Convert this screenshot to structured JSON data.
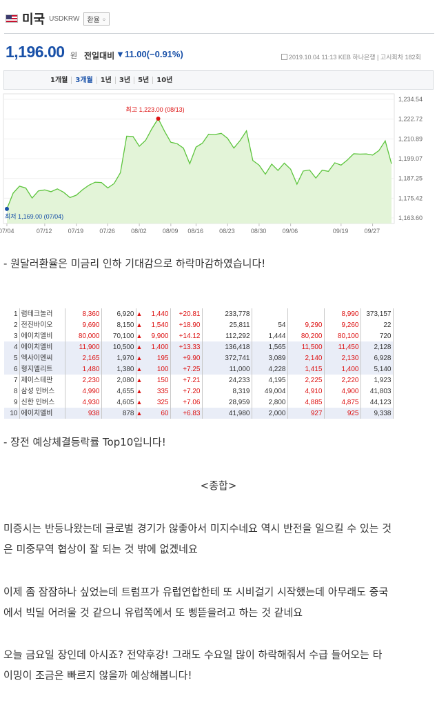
{
  "header": {
    "country": "미국",
    "code": "USDKRW",
    "kind_label": "환율 ◦"
  },
  "quote": {
    "price": "1,196.00",
    "unit": "원",
    "compare_label": "전일대비",
    "change": "▼11.00(−0.91%)",
    "meta": "2019.10.04 11:13  KEB 하나은행  |  고시회차 182회"
  },
  "tabs": [
    {
      "label": "1개월",
      "active": false
    },
    {
      "label": "3개월",
      "active": true
    },
    {
      "label": "1년",
      "active": false
    },
    {
      "label": "3년",
      "active": false
    },
    {
      "label": "5년",
      "active": false
    },
    {
      "label": "10년",
      "active": false
    }
  ],
  "chart_data": {
    "type": "area",
    "ylim": [
      1163.6,
      1234.54
    ],
    "yticks": [
      "1,234.54",
      "1,222.72",
      "1,210.89",
      "1,199.07",
      "1,187.25",
      "1,175.42",
      "1,163.60"
    ],
    "xticks": [
      "07/04",
      "07/12",
      "07/19",
      "07/26",
      "08/02",
      "08/09",
      "08/16",
      "08/23",
      "08/30",
      "09/06",
      "09/19",
      "09/27"
    ],
    "high_label": "최고 1,223.00 (08/13)",
    "low_label": "최저 1,169.00 (07/04)",
    "colors": {
      "line": "#5cc43c",
      "fill": "#e3f4d8",
      "high": "#dd1111",
      "low": "#1850a8"
    },
    "series": [
      {
        "values": [
          1169.0,
          1178.5,
          1182.6,
          1181.5,
          1175.5,
          1179.8,
          1180.4,
          1179.3,
          1181.0,
          1179.0,
          1175.8,
          1177.2,
          1180.5,
          1183.2,
          1185.0,
          1184.8,
          1181.6,
          1184.2,
          1190.7,
          1212.5,
          1212.3,
          1206.5,
          1210.0,
          1217.0,
          1223.0,
          1215.5,
          1208.9,
          1208.0,
          1205.4,
          1196.0,
          1206.0,
          1208.3,
          1213.7,
          1213.5,
          1214.2,
          1211.2,
          1205.4,
          1210.0,
          1215.7,
          1198.0,
          1195.2,
          1189.8,
          1195.8,
          1192.0,
          1196.4,
          1192.8,
          1183.8,
          1191.7,
          1192.3,
          1187.5,
          1192.2,
          1191.5,
          1196.6,
          1195.2,
          1198.3,
          1202.0,
          1201.8,
          1201.9,
          1201.2,
          1203.9,
          1209.7,
          1196.0
        ]
      }
    ]
  },
  "paragraph1": "- 원달러환율은 미금리 인하 기대감으로 하락마감하였습니다!",
  "table": {
    "rows": [
      {
        "rank": "1",
        "name": "럼테크놀러",
        "c1": "8,360",
        "c2": "6,920",
        "tri": "▲",
        "c3": "1,440",
        "c4": "+20.81",
        "c5": "233,778",
        "c6": "",
        "c7": "",
        "c8": "8,990",
        "c9": "373,157",
        "hl": false
      },
      {
        "rank": "2",
        "name": "전진바이오",
        "c1": "9,690",
        "c2": "8,150",
        "tri": "▲",
        "c3": "1,540",
        "c4": "+18.90",
        "c5": "25,811",
        "c6": "54",
        "c7": "9,290",
        "c8": "9,260",
        "c9": "22",
        "hl": false
      },
      {
        "rank": "3",
        "name": "에이치엘비",
        "c1": "80,000",
        "c2": "70,100",
        "tri": "▲",
        "c3": "9,900",
        "c4": "+14.12",
        "c5": "112,292",
        "c6": "1,444",
        "c7": "80,200",
        "c8": "80,100",
        "c9": "720",
        "hl": false
      },
      {
        "rank": "4",
        "name": "에이치엘비",
        "c1": "11,900",
        "c2": "10,500",
        "tri": "▲",
        "c3": "1,400",
        "c4": "+13.33",
        "c5": "136,418",
        "c6": "1,565",
        "c7": "11,500",
        "c8": "11,450",
        "c9": "2,128",
        "hl": true
      },
      {
        "rank": "5",
        "name": "엑사이엔씨",
        "c1": "2,165",
        "c2": "1,970",
        "tri": "▲",
        "c3": "195",
        "c4": "+9.90",
        "c5": "372,741",
        "c6": "3,089",
        "c7": "2,140",
        "c8": "2,130",
        "c9": "6,928",
        "hl": true
      },
      {
        "rank": "6",
        "name": "형지엘리트",
        "c1": "1,480",
        "c2": "1,380",
        "tri": "▲",
        "c3": "100",
        "c4": "+7.25",
        "c5": "11,000",
        "c6": "4,228",
        "c7": "1,415",
        "c8": "1,400",
        "c9": "5,140",
        "hl": true
      },
      {
        "rank": "7",
        "name": "제이스테판",
        "c1": "2,230",
        "c2": "2,080",
        "tri": "▲",
        "c3": "150",
        "c4": "+7.21",
        "c5": "24,233",
        "c6": "4,195",
        "c7": "2,225",
        "c8": "2,220",
        "c9": "1,923",
        "hl": false
      },
      {
        "rank": "8",
        "name": "삼성 인버스",
        "c1": "4,990",
        "c2": "4,655",
        "tri": "▲",
        "c3": "335",
        "c4": "+7.20",
        "c5": "8,319",
        "c6": "49,004",
        "c7": "4,910",
        "c8": "4,900",
        "c9": "41,803",
        "hl": false
      },
      {
        "rank": "9",
        "name": "신한 인버스",
        "c1": "4,930",
        "c2": "4,605",
        "tri": "▲",
        "c3": "325",
        "c4": "+7.06",
        "c5": "28,959",
        "c6": "2,800",
        "c7": "4,885",
        "c8": "4,875",
        "c9": "44,123",
        "hl": false
      },
      {
        "rank": "10",
        "name": "에이치엘비",
        "c1": "938",
        "c2": "878",
        "tri": "▲",
        "c3": "60",
        "c4": "+6.83",
        "c5": "41,980",
        "c6": "2,000",
        "c7": "927",
        "c8": "925",
        "c9": "9,338",
        "hl": true
      }
    ]
  },
  "paragraph2": "- 장전 예상체결등락률 Top10입니다!",
  "summary_heading": "<종합>",
  "body1_line1": "미증시는 반등나왔는데 글로벌 경기가 않좋아서 미지수네요 역시 반전을 일으킬 수 있는 것",
  "body1_line2": "은 미중무역 협상이 잘 되는 것 밖에 없겠네요",
  "body2_line1": "이제 좀 잠잠하나 싶었는데 트럼프가 유럽연합한테 또 시비걸기 시작했는데 아무래도 중국",
  "body2_line2": "에서 빅딜 어려울 것 같으니 유럽쪽에서 또 삥뜯을려고 하는 것 같네요",
  "body3_line1": "오늘 금요일 장인데 아시죠? 전약후강! 그래도 수요일 많이 하락해줘서 수급 들어오는 타",
  "body3_line2": "이밍이 조금은 빠르지 않을까 예상해봅니다!"
}
